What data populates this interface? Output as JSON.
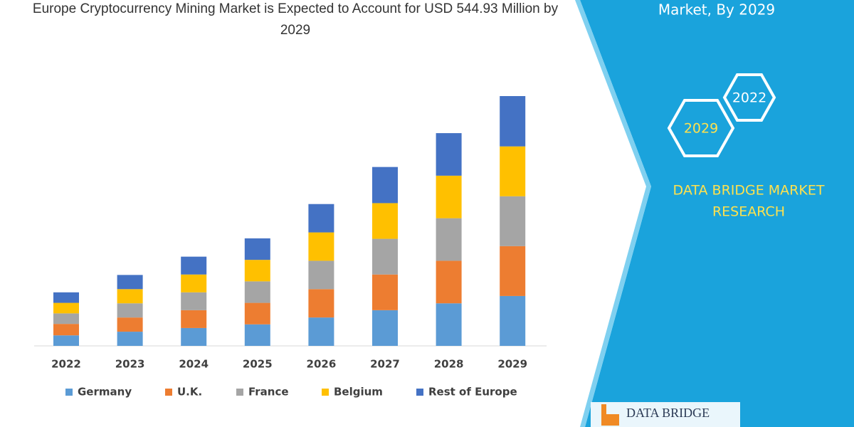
{
  "chart_data": {
    "type": "stacked_bar",
    "title": "Europe Cryptocurrency Mining Market is Expected to Account for USD 544.93 Million by 2029",
    "categories": [
      "2022",
      "2023",
      "2024",
      "2025",
      "2026",
      "2027",
      "2028",
      "2029"
    ],
    "series": [
      {
        "name": "Germany",
        "color": "#5b9bd5",
        "values": [
          23,
          31,
          39,
          47,
          62,
          78,
          93,
          109
        ]
      },
      {
        "name": "U.K.",
        "color": "#ed7d31",
        "values": [
          25,
          31,
          39,
          47,
          62,
          78,
          93,
          109
        ]
      },
      {
        "name": "France",
        "color": "#a5a5a5",
        "values": [
          23,
          31,
          39,
          47,
          62,
          78,
          93,
          109
        ]
      },
      {
        "name": "Belgium",
        "color": "#ffc000",
        "values": [
          23,
          31,
          39,
          47,
          62,
          78,
          93,
          109
        ]
      },
      {
        "name": "Rest of Europe",
        "color": "#4472c4",
        "values": [
          23,
          31,
          39,
          47,
          62,
          79,
          93,
          110
        ]
      }
    ],
    "legend": "bottom"
  },
  "panel": {
    "heading": "Market, By 2029",
    "hexagons": [
      "2029",
      "2022"
    ],
    "brand_lines": [
      "DATA BRIDGE MARKET",
      "RESEARCH"
    ],
    "logo": "DATA BRIDGE"
  }
}
